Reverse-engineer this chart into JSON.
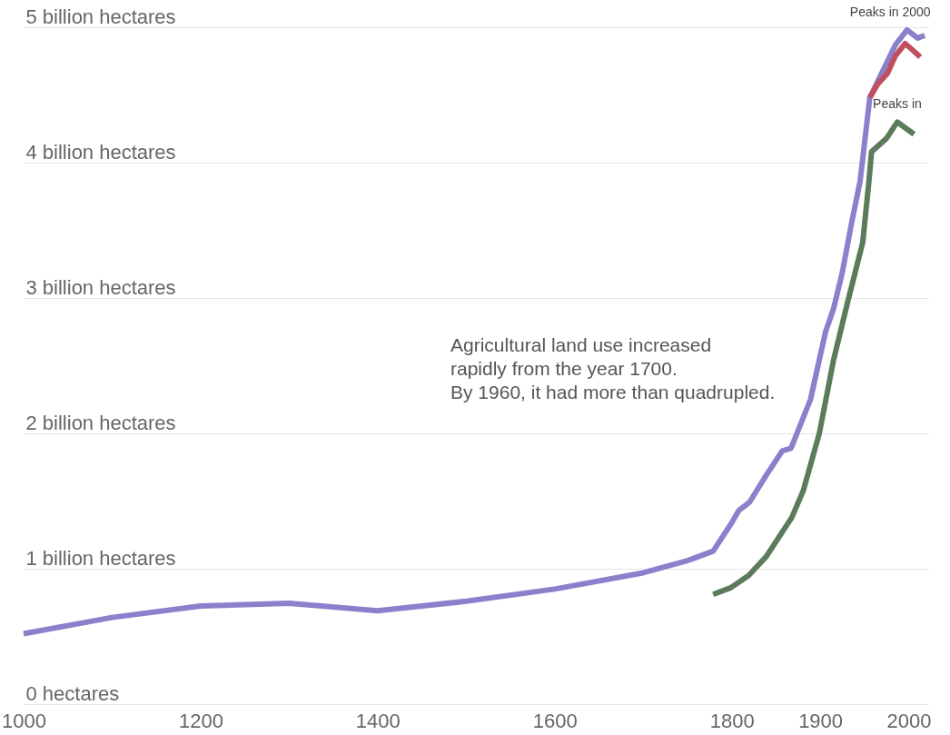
{
  "chart_data": {
    "type": "line",
    "x": [
      1000,
      1100,
      1200,
      1300,
      1400,
      1500,
      1600,
      1700,
      1750,
      1779,
      1800,
      1808,
      1820,
      1839,
      1857,
      1867,
      1889,
      1906,
      1915,
      1925,
      1935,
      1945,
      1956,
      1985,
      1998,
      2010,
      2018
    ],
    "series": [
      {
        "color": "#8a80cc",
        "values": [
          0.52,
          0.64,
          0.725,
          0.745,
          0.69,
          0.76,
          0.85,
          0.97,
          1.06,
          1.13,
          1.34,
          1.43,
          1.49,
          1.69,
          1.87,
          1.89,
          2.25,
          2.75,
          2.92,
          3.19,
          3.54,
          3.86,
          4.48,
          4.87,
          4.98,
          4.92,
          4.94
        ]
      },
      {
        "color": "#c0505f",
        "x": [
          1956,
          1965,
          1976,
          1985,
          1996,
          2008,
          2013
        ],
        "values": [
          4.48,
          4.58,
          4.66,
          4.79,
          4.88,
          4.81,
          4.78
        ]
      },
      {
        "color": "#5b7b5a",
        "x": [
          1779,
          1799,
          1819,
          1839,
          1868,
          1881,
          1899,
          1915,
          1931,
          1948,
          1955,
          1958,
          1975,
          1987,
          2006
        ],
        "values": [
          0.81,
          0.86,
          0.95,
          1.09,
          1.38,
          1.58,
          2.0,
          2.54,
          2.97,
          3.41,
          3.86,
          4.08,
          4.18,
          4.3,
          4.21
        ]
      }
    ],
    "xlim": [
      1000,
      2022
    ],
    "xticks": [
      1000,
      1200,
      1400,
      1600,
      1800,
      1900,
      2000
    ],
    "ylim": [
      0,
      5
    ],
    "yticks": [
      {
        "value": 0,
        "label": "0 hectares"
      },
      {
        "value": 1,
        "label": "1 billion hectares"
      },
      {
        "value": 2,
        "label": "2 billion hectares"
      },
      {
        "value": 3,
        "label": "3 billion hectares"
      },
      {
        "value": 4,
        "label": "4 billion hectares"
      },
      {
        "value": 5,
        "label": "5 billion hectares"
      }
    ],
    "grid": "y",
    "line_style": "solid",
    "annotations": [
      "Agricultural land use increased\nrapidly from the year 1700.\nBy 1960, it had more than quadrupled.",
      {
        "text": "Peaks in 2000",
        "x": 2000,
        "y": 4.98
      },
      {
        "text": "Peaks in",
        "x": 1990,
        "y": 4.3
      }
    ]
  }
}
